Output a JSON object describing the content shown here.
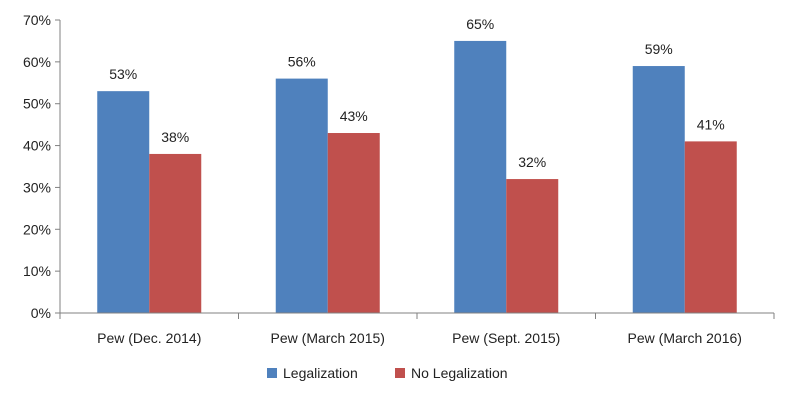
{
  "chart_data": {
    "type": "bar",
    "categories": [
      "Pew (Dec. 2014)",
      "Pew (March 2015)",
      "Pew (Sept. 2015)",
      "Pew (March 2016)"
    ],
    "series": [
      {
        "name": "Legalization",
        "values": [
          53,
          56,
          65,
          59
        ],
        "color": "#4f81bd"
      },
      {
        "name": "No Legalization",
        "values": [
          38,
          43,
          32,
          41
        ],
        "color": "#c0504d"
      }
    ],
    "data_labels": [
      [
        "53%",
        "56%",
        "65%",
        "59%"
      ],
      [
        "38%",
        "43%",
        "32%",
        "41%"
      ]
    ],
    "yticks": [
      "0%",
      "10%",
      "20%",
      "30%",
      "40%",
      "50%",
      "60%",
      "70%"
    ],
    "ylim": [
      0,
      70
    ],
    "grid": false,
    "legend_position": "bottom"
  }
}
